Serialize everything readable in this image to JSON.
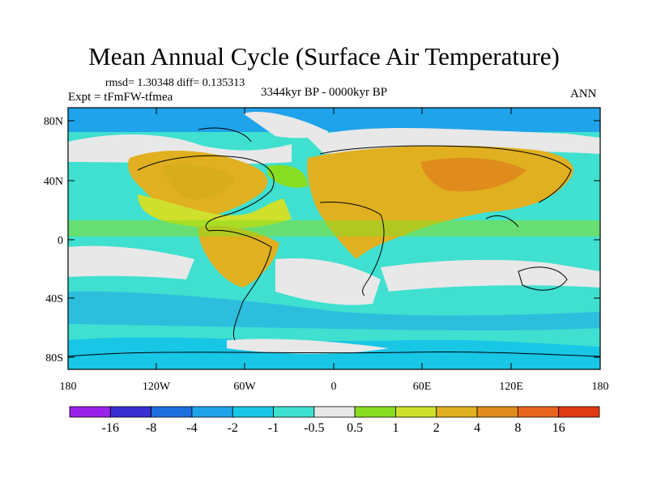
{
  "title": "Mean Annual Cycle (Surface Air Temperature)",
  "stats": "rmsd= 1.30348 diff= 0.135313",
  "period": "3344kyr BP - 0000kyr BP",
  "experiment": "Expt = tFmFW-tfmea",
  "season": "ANN",
  "lat_labels": [
    "80N",
    "40N",
    "0",
    "40S",
    "80S"
  ],
  "lon_labels": [
    "180",
    "120W",
    "60W",
    "0",
    "60E",
    "120E",
    "180"
  ],
  "colorbar": {
    "labels": [
      "-16",
      "-8",
      "-4",
      "-2",
      "-1",
      "-0.5",
      "0.5",
      "1",
      "2",
      "4",
      "8",
      "16"
    ],
    "colors": [
      "#9a22e8",
      "#3a2ed2",
      "#1d6fe0",
      "#1fa3ea",
      "#18c6e6",
      "#3fe0d0",
      "#e8e8e8",
      "#88dd22",
      "#cfe02c",
      "#e0b020",
      "#e08c1c",
      "#e8641c",
      "#e03a12"
    ]
  }
}
